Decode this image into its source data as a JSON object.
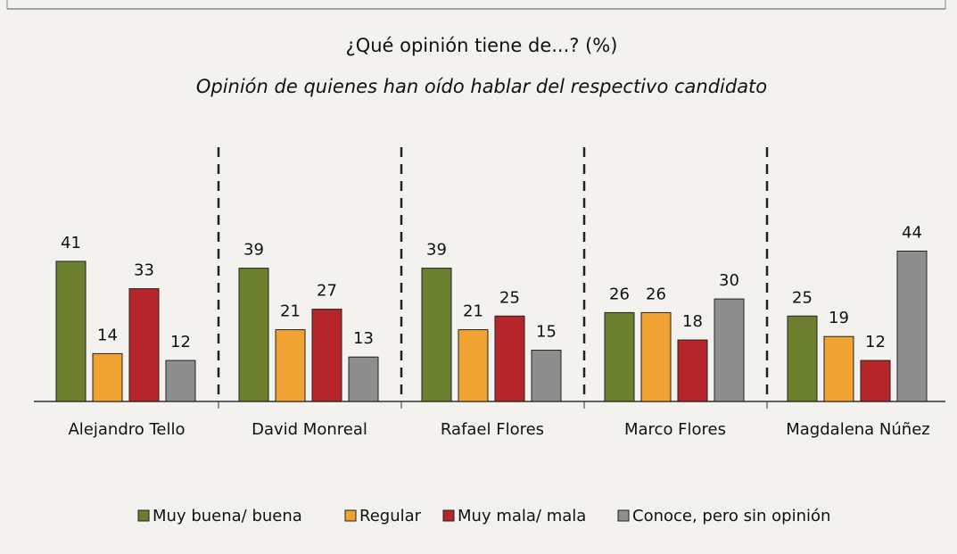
{
  "chart_data": {
    "type": "bar",
    "title": "¿Qué opinión tiene de...? (%)",
    "subtitle": "Opinión de quienes han oído hablar del respectivo candidato",
    "categories": [
      "Alejandro Tello",
      "David Monreal",
      "Rafael Flores",
      "Marco Flores",
      "Magdalena Núñez"
    ],
    "series": [
      {
        "name": "Muy buena/ buena",
        "color": "#6b7f2e",
        "values": [
          41,
          39,
          39,
          26,
          25
        ]
      },
      {
        "name": "Regular",
        "color": "#f0a232",
        "values": [
          14,
          21,
          21,
          26,
          19
        ]
      },
      {
        "name": "Muy mala/ mala",
        "color": "#b5252a",
        "values": [
          33,
          27,
          25,
          18,
          12
        ]
      },
      {
        "name": "Conoce, pero sin opinión",
        "color": "#8e8e8e",
        "values": [
          12,
          13,
          15,
          30,
          44
        ]
      }
    ],
    "ylim": [
      0,
      50
    ],
    "legend": "bottom"
  }
}
